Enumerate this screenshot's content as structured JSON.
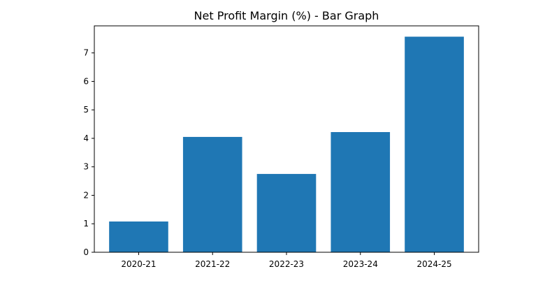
{
  "chart_data": {
    "type": "bar",
    "title": "Net Profit Margin (%) - Bar Graph",
    "xlabel": "",
    "ylabel": "",
    "categories": [
      "2020-21",
      "2021-22",
      "2022-23",
      "2023-24",
      "2024-25"
    ],
    "values": [
      1.08,
      4.05,
      2.75,
      4.22,
      7.57
    ],
    "ylim": [
      0,
      7.95
    ],
    "yticks": [
      0,
      1,
      2,
      3,
      4,
      5,
      6,
      7
    ],
    "grid": false,
    "legend": "none",
    "colors": {
      "bar": "#1f77b4",
      "axis": "#000000",
      "background": "#ffffff"
    }
  }
}
